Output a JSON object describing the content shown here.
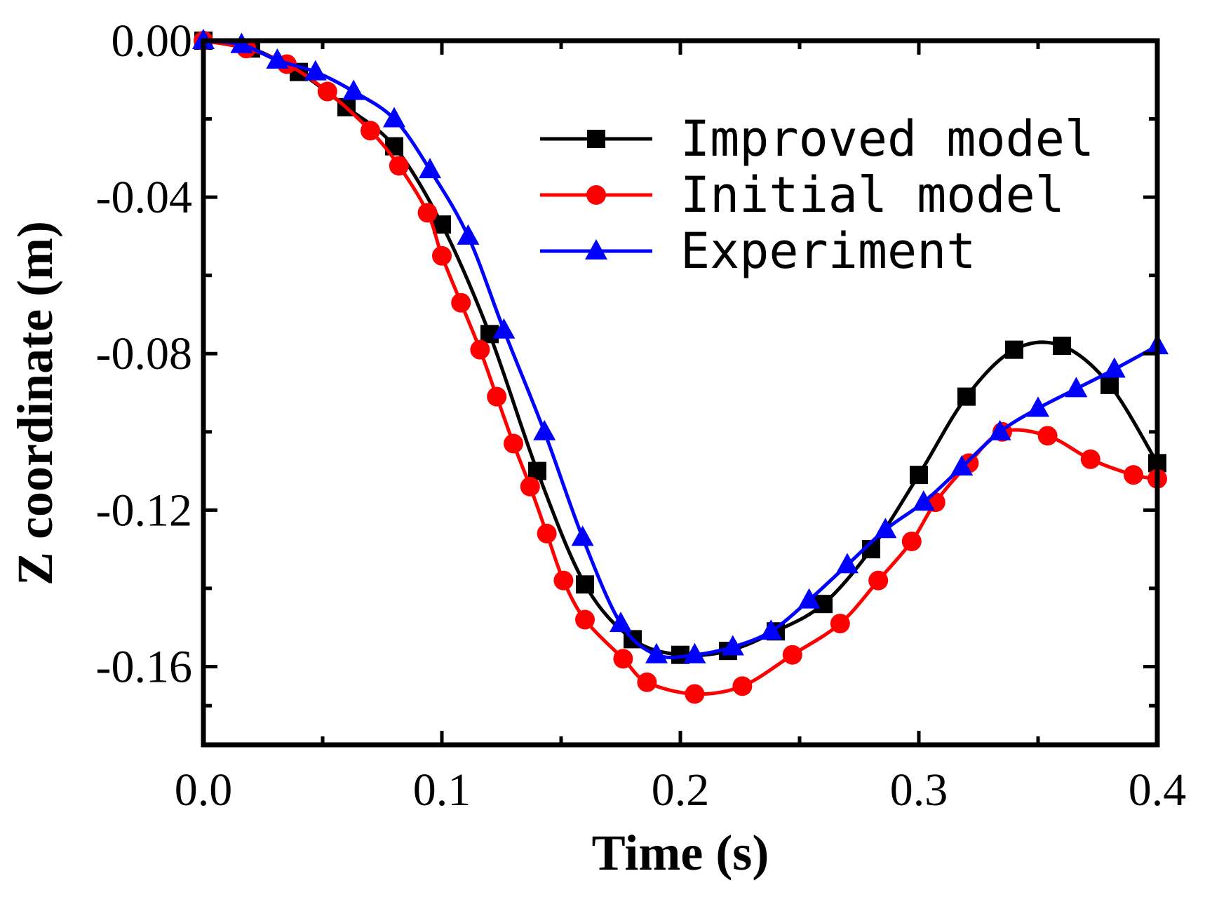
{
  "chart_data": {
    "type": "line",
    "title": "",
    "xlabel": "Time (s)",
    "ylabel": "Z coordinate (m)",
    "xlim": [
      0.0,
      0.4
    ],
    "ylim": [
      -0.18,
      0.0
    ],
    "xticks": [
      0.0,
      0.1,
      0.2,
      0.3,
      0.4
    ],
    "xtick_labels": [
      "0.0",
      "0.1",
      "0.2",
      "0.3",
      "0.4"
    ],
    "yticks": [
      0.0,
      -0.04,
      -0.08,
      -0.12,
      -0.16
    ],
    "ytick_labels": [
      "0.00",
      "-0.04",
      "-0.08",
      "-0.12",
      "-0.16"
    ],
    "grid": false,
    "legend_position": "top-right",
    "series": [
      {
        "name": "Improved model",
        "color": "#000000",
        "marker": "square",
        "x": [
          0.0,
          0.02,
          0.04,
          0.06,
          0.08,
          0.1,
          0.12,
          0.14,
          0.16,
          0.18,
          0.2,
          0.22,
          0.24,
          0.26,
          0.28,
          0.3,
          0.32,
          0.34,
          0.36,
          0.38,
          0.4
        ],
        "y": [
          0.0,
          -0.002,
          -0.008,
          -0.017,
          -0.027,
          -0.047,
          -0.075,
          -0.11,
          -0.139,
          -0.153,
          -0.157,
          -0.156,
          -0.151,
          -0.144,
          -0.13,
          -0.111,
          -0.091,
          -0.079,
          -0.078,
          -0.088,
          -0.108
        ]
      },
      {
        "name": "Initial model",
        "color": "#ff0000",
        "marker": "circle",
        "x": [
          0.0,
          0.018,
          0.035,
          0.052,
          0.07,
          0.082,
          0.094,
          0.1,
          0.108,
          0.116,
          0.123,
          0.13,
          0.137,
          0.144,
          0.151,
          0.16,
          0.176,
          0.186,
          0.206,
          0.226,
          0.247,
          0.267,
          0.283,
          0.297,
          0.307,
          0.321,
          0.335,
          0.354,
          0.372,
          0.39,
          0.4
        ],
        "y": [
          0.0,
          -0.002,
          -0.006,
          -0.013,
          -0.023,
          -0.032,
          -0.044,
          -0.055,
          -0.067,
          -0.079,
          -0.091,
          -0.103,
          -0.114,
          -0.126,
          -0.138,
          -0.148,
          -0.158,
          -0.164,
          -0.167,
          -0.165,
          -0.157,
          -0.149,
          -0.138,
          -0.128,
          -0.118,
          -0.108,
          -0.1,
          -0.101,
          -0.107,
          -0.111,
          -0.112
        ]
      },
      {
        "name": "Experiment",
        "color": "#0000ff",
        "marker": "triangle",
        "x": [
          0.0,
          0.016,
          0.031,
          0.047,
          0.063,
          0.08,
          0.095,
          0.111,
          0.126,
          0.143,
          0.159,
          0.175,
          0.19,
          0.206,
          0.222,
          0.238,
          0.254,
          0.27,
          0.286,
          0.302,
          0.318,
          0.334,
          0.35,
          0.366,
          0.382,
          0.4
        ],
        "y": [
          0.0,
          -0.001,
          -0.005,
          -0.008,
          -0.013,
          -0.02,
          -0.033,
          -0.05,
          -0.074,
          -0.1,
          -0.127,
          -0.149,
          -0.157,
          -0.157,
          -0.155,
          -0.151,
          -0.143,
          -0.134,
          -0.125,
          -0.118,
          -0.109,
          -0.1,
          -0.094,
          -0.089,
          -0.084,
          -0.078
        ]
      }
    ]
  }
}
